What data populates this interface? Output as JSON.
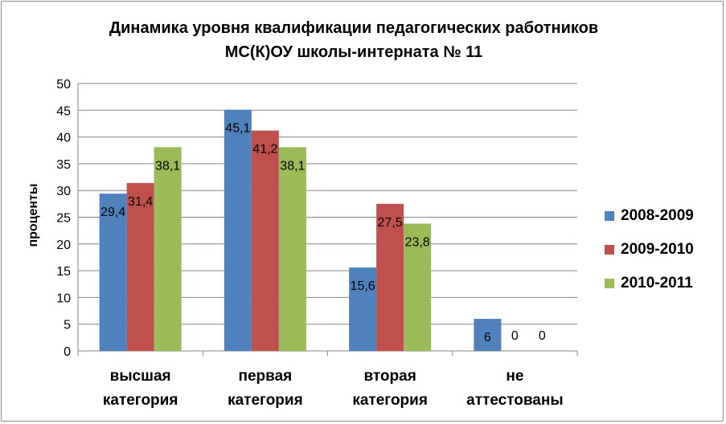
{
  "chart_data": {
    "type": "bar",
    "title_line1": "Динамика уровня квалификации педагогических работников",
    "title_line2": "МС(К)ОУ школы-интерната № 11",
    "ylabel": "проценты",
    "ylim": [
      0,
      50
    ],
    "yticks": [
      0,
      5,
      10,
      15,
      20,
      25,
      30,
      35,
      40,
      45,
      50
    ],
    "grid": true,
    "legend_position": "right",
    "categories": [
      [
        "высшая",
        "категория"
      ],
      [
        "первая",
        "категория"
      ],
      [
        "вторая",
        "категория"
      ],
      [
        "не",
        "аттестованы"
      ]
    ],
    "series": [
      {
        "name": "2008-2009",
        "color": "#4f81bd",
        "values": [
          29.4,
          45.1,
          15.6,
          6
        ],
        "labels": [
          "29,4",
          "45,1",
          "15,6",
          "6"
        ]
      },
      {
        "name": "2009-2010",
        "color": "#c0504d",
        "values": [
          31.4,
          41.2,
          27.5,
          0
        ],
        "labels": [
          "31,4",
          "41,2",
          "27,5",
          "0"
        ]
      },
      {
        "name": "2010-2011",
        "color": "#9bbb59",
        "values": [
          38.1,
          38.1,
          23.8,
          0
        ],
        "labels": [
          "38,1",
          "38,1",
          "23,8",
          "0"
        ]
      }
    ]
  }
}
